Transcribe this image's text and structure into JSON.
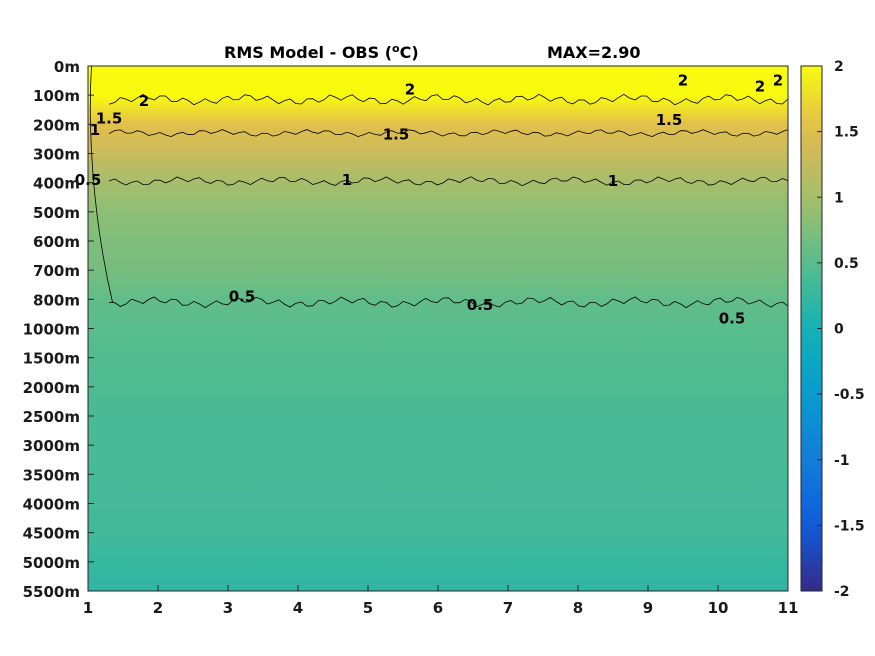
{
  "chart_data": {
    "type": "heatmap",
    "title": "RMS Model - OBS (",
    "title_unit_sup": "o",
    "title_unit": "C)",
    "max_label": "MAX=2.90",
    "x": {
      "ticks": [
        1,
        2,
        3,
        4,
        5,
        6,
        7,
        8,
        9,
        10,
        11
      ],
      "tick_labels": [
        "1",
        "2",
        "3",
        "4",
        "5",
        "6",
        "7",
        "8",
        "9",
        "10",
        "11"
      ],
      "range": [
        1,
        11
      ]
    },
    "y": {
      "depth_labels": [
        "0m",
        "100m",
        "200m",
        "300m",
        "400m",
        "500m",
        "600m",
        "700m",
        "800m",
        "1000m",
        "1500m",
        "2000m",
        "2500m",
        "3000m",
        "3500m",
        "4000m",
        "4500m",
        "5000m",
        "5500m"
      ],
      "reversed": true
    },
    "colorbar": {
      "range": [
        -2,
        2
      ],
      "ticks": [
        2,
        1.5,
        1,
        0.5,
        0,
        -0.5,
        -1,
        -1.5,
        -2
      ],
      "tick_labels": [
        "2",
        "1.5",
        "1",
        "0.5",
        "0",
        "-0.5",
        "-1",
        "-1.5",
        "-2"
      ],
      "colormap": "parula"
    },
    "contour_levels": [
      0.5,
      1,
      1.5,
      2
    ],
    "field": {
      "depth_profile": [
        [
          0,
          2.2
        ],
        [
          1,
          2.1
        ],
        [
          2,
          1.55
        ],
        [
          3,
          1.3
        ],
        [
          4,
          1.0
        ],
        [
          5,
          0.85
        ],
        [
          6,
          0.75
        ],
        [
          7,
          0.7
        ],
        [
          8,
          0.55
        ],
        [
          9,
          0.5
        ],
        [
          10,
          0.45
        ],
        [
          11,
          0.42
        ],
        [
          12,
          0.38
        ],
        [
          13,
          0.38
        ],
        [
          14,
          0.36
        ],
        [
          15,
          0.35
        ],
        [
          16,
          0.33
        ],
        [
          17,
          0.25
        ],
        [
          18,
          0.2
        ]
      ]
    },
    "contour_labels": [
      {
        "text": "2",
        "x": 1.8,
        "depth_index": 1.2
      },
      {
        "text": "2",
        "x": 5.6,
        "depth_index": 0.8
      },
      {
        "text": "2",
        "x": 9.5,
        "depth_index": 0.5
      },
      {
        "text": "2",
        "x": 10.6,
        "depth_index": 0.7
      },
      {
        "text": "2",
        "x": 11.0,
        "depth_index": 0.5
      },
      {
        "text": "1.5",
        "x": 1.3,
        "depth_index": 1.8
      },
      {
        "text": "1.5",
        "x": 5.4,
        "depth_index": 2.35
      },
      {
        "text": "1.5",
        "x": 9.3,
        "depth_index": 1.85
      },
      {
        "text": "1",
        "x": 1.1,
        "depth_index": 2.2
      },
      {
        "text": "1",
        "x": 4.7,
        "depth_index": 3.9
      },
      {
        "text": "1",
        "x": 8.5,
        "depth_index": 3.95
      },
      {
        "text": "0.5",
        "x": 1.0,
        "depth_index": 3.9
      },
      {
        "text": "0.5",
        "x": 3.2,
        "depth_index": 7.9
      },
      {
        "text": "0.5",
        "x": 6.6,
        "depth_index": 8.2
      },
      {
        "text": "0.5",
        "x": 10.2,
        "depth_index": 8.65
      }
    ],
    "grid": false
  }
}
